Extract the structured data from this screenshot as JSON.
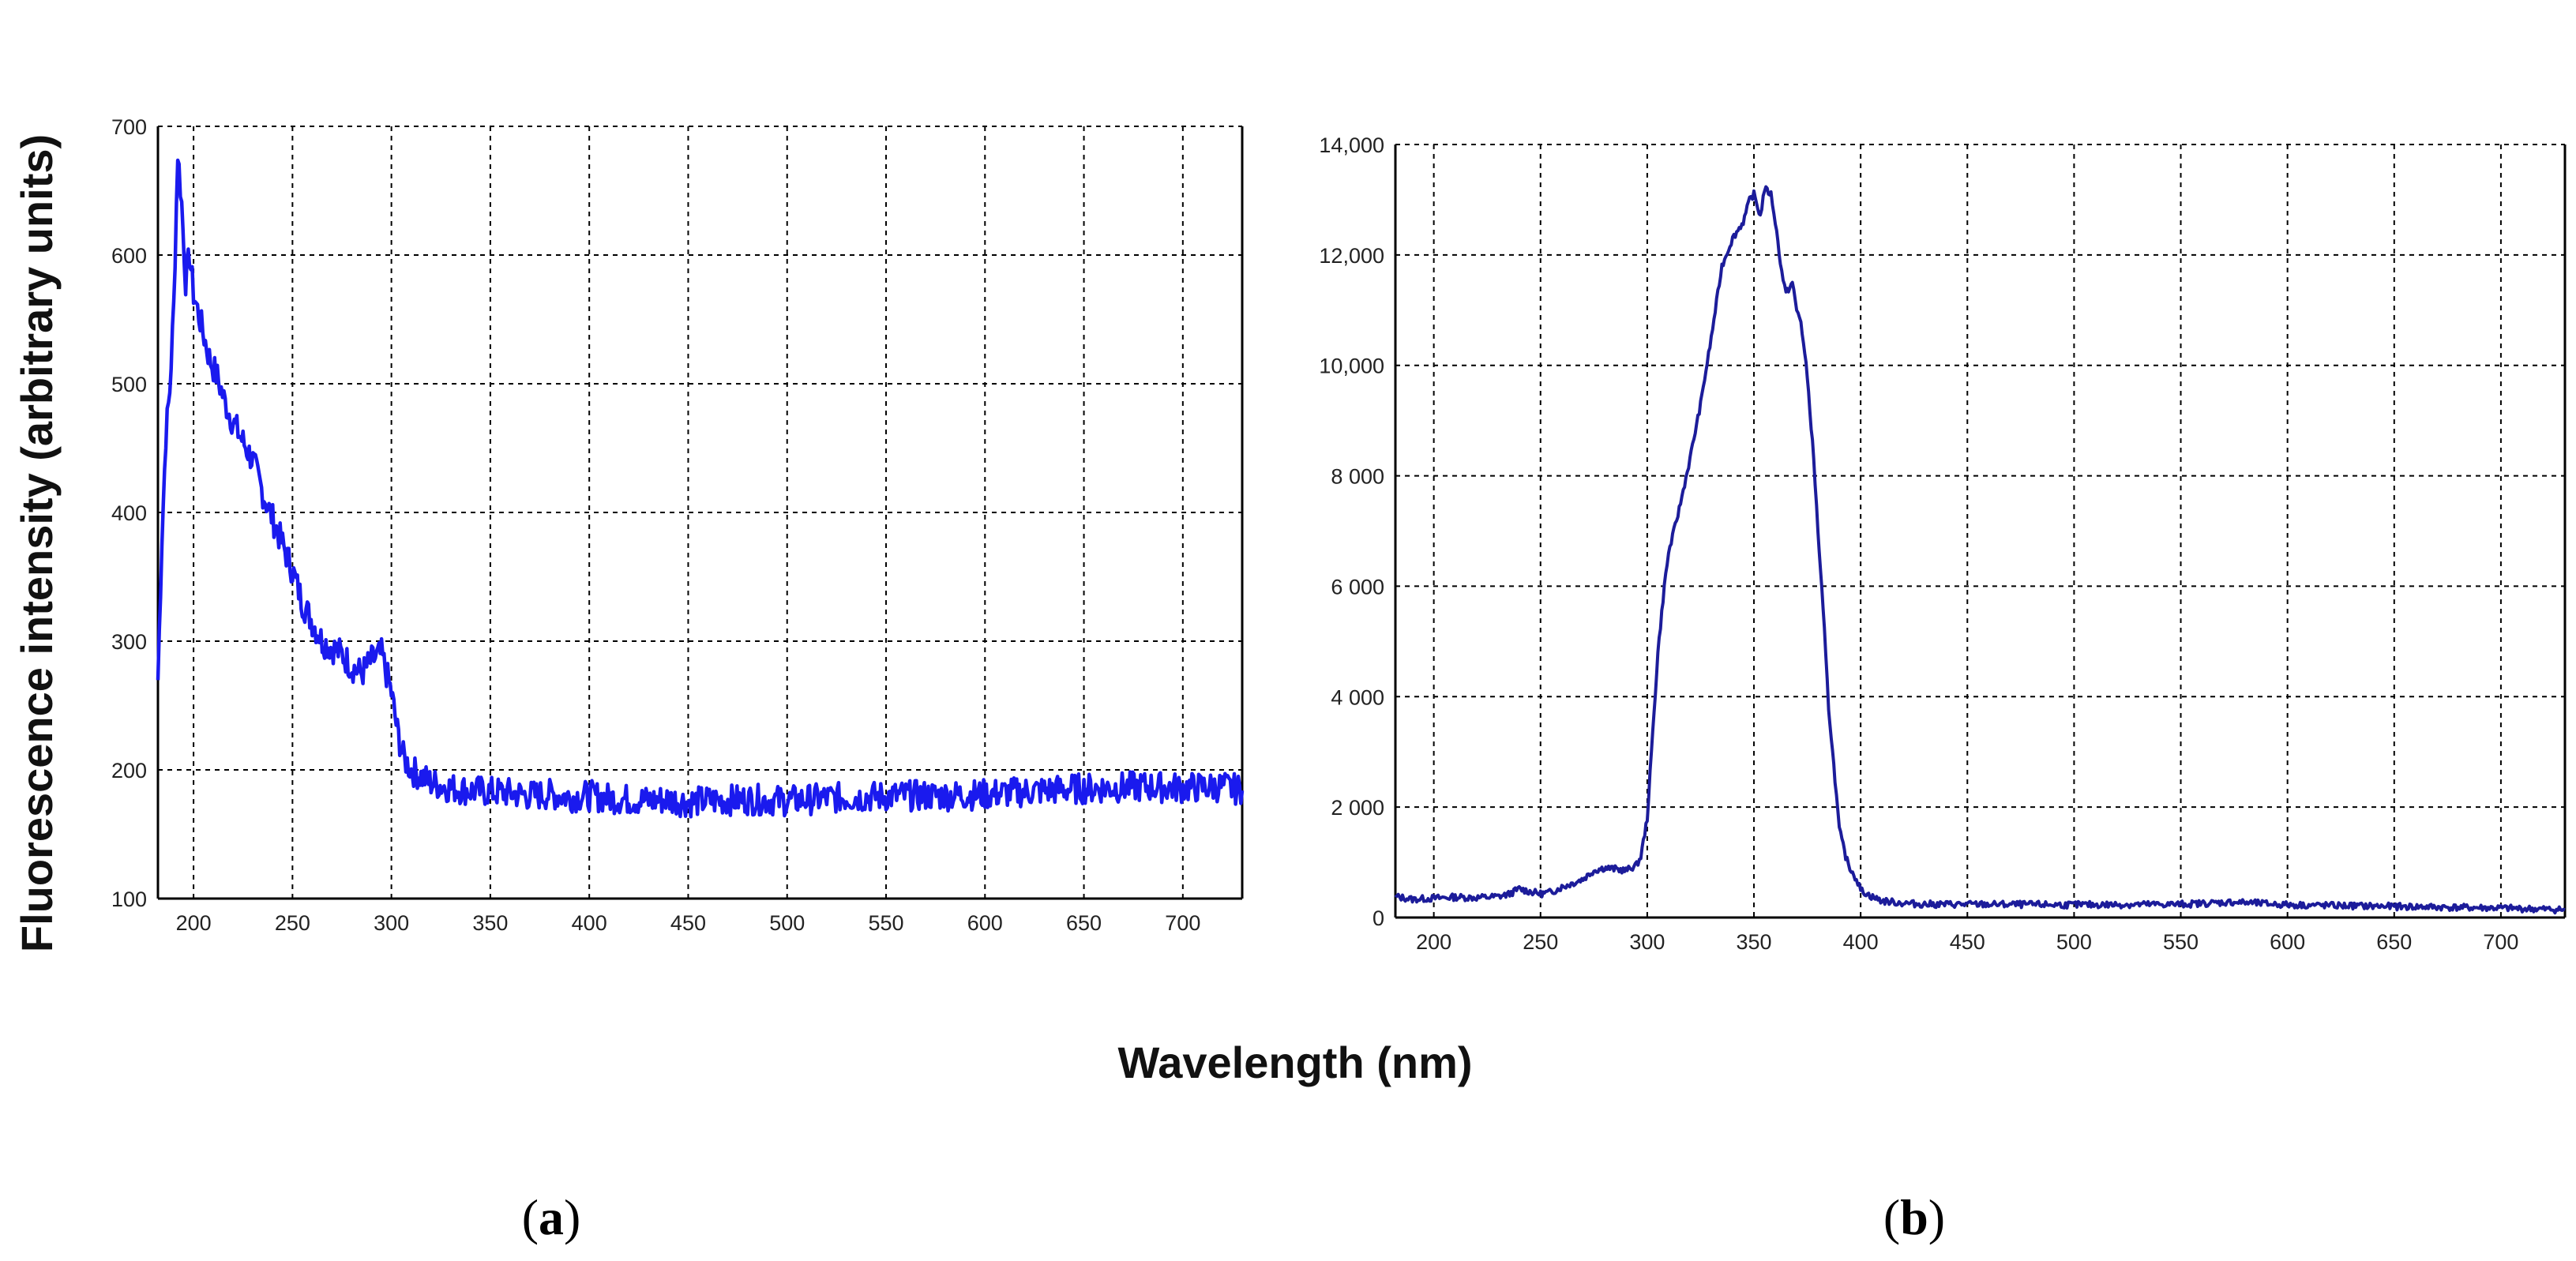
{
  "figure": {
    "ylabel": "Fluorescence intensity (arbitrary units)",
    "xlabel": "Wavelength (nm)",
    "panel_a": {
      "open": "(",
      "letter": "a",
      "close": ")"
    },
    "panel_b": {
      "open": "(",
      "letter": "b",
      "close": ")"
    }
  },
  "colors": {
    "series_a": "#1a1aee",
    "series_b": "#1c1c9a",
    "grid": "#000000"
  },
  "chart_data": [
    {
      "id": "a",
      "type": "line",
      "title": "",
      "xlabel": "Wavelength (nm)",
      "ylabel": "Fluorescence intensity (arbitrary units)",
      "xlim": [
        182,
        730
      ],
      "ylim": [
        100,
        700
      ],
      "grid": true,
      "xticks": [
        200,
        250,
        300,
        350,
        400,
        450,
        500,
        550,
        600,
        650,
        700
      ],
      "xtick_labels": [
        "200",
        "250",
        "300",
        "350",
        "400",
        "450",
        "500",
        "550",
        "600",
        "650",
        "700"
      ],
      "yticks": [
        100,
        200,
        300,
        400,
        500,
        600,
        700
      ],
      "ytick_labels": [
        "100",
        "200",
        "300",
        "400",
        "500",
        "600",
        "700"
      ],
      "series": [
        {
          "name": "Fluorescence",
          "x": [
            182,
            184,
            186,
            188,
            190,
            192,
            194,
            196,
            198,
            200,
            204,
            208,
            212,
            216,
            220,
            225,
            230,
            235,
            240,
            245,
            250,
            255,
            260,
            265,
            270,
            275,
            280,
            285,
            290,
            295,
            300,
            303,
            306,
            310,
            315,
            320,
            330,
            340,
            350,
            360,
            370,
            380,
            390,
            400,
            410,
            420,
            430,
            440,
            450,
            460,
            480,
            500,
            520,
            540,
            560,
            580,
            600,
            620,
            640,
            660,
            680,
            700,
            720,
            730
          ],
          "y": [
            270,
            380,
            460,
            495,
            560,
            680,
            640,
            580,
            600,
            570,
            545,
            520,
            505,
            485,
            470,
            455,
            440,
            415,
            395,
            375,
            355,
            330,
            315,
            300,
            295,
            290,
            280,
            275,
            285,
            290,
            260,
            230,
            210,
            200,
            195,
            190,
            186,
            184,
            183,
            182,
            180,
            181,
            179,
            180,
            178,
            177,
            176,
            177,
            175,
            176,
            177,
            176,
            178,
            179,
            180,
            180,
            181,
            183,
            185,
            186,
            187,
            186,
            187,
            184
          ],
          "noise": 12
        }
      ]
    },
    {
      "id": "b",
      "type": "line",
      "title": "",
      "xlabel": "",
      "ylabel": "",
      "xlim": [
        182,
        730
      ],
      "ylim": [
        0,
        14000
      ],
      "grid": true,
      "xticks": [
        200,
        250,
        300,
        350,
        400,
        450,
        500,
        550,
        600,
        650,
        700
      ],
      "xtick_labels": [
        "200",
        "250",
        "300",
        "350",
        "400",
        "450",
        "500",
        "550",
        "600",
        "650",
        "700"
      ],
      "yticks": [
        0,
        2000,
        4000,
        6000,
        8000,
        10000,
        12000,
        14000
      ],
      "ytick_labels": [
        "0",
        "2 000",
        "4 000",
        "6 000",
        "8 000",
        "10,000",
        "12,000",
        "14,000"
      ],
      "series": [
        {
          "name": "Fluorescence",
          "x": [
            182,
            190,
            200,
            210,
            220,
            230,
            235,
            240,
            245,
            250,
            255,
            260,
            265,
            270,
            275,
            280,
            285,
            290,
            295,
            297,
            300,
            302,
            305,
            308,
            310,
            315,
            320,
            325,
            330,
            335,
            340,
            345,
            348,
            350,
            353,
            355,
            358,
            360,
            363,
            365,
            368,
            370,
            372,
            375,
            378,
            380,
            383,
            385,
            388,
            390,
            393,
            395,
            398,
            400,
            405,
            410,
            420,
            430,
            450,
            500,
            550,
            575,
            600,
            650,
            700,
            730
          ],
          "y": [
            380,
            330,
            350,
            370,
            360,
            380,
            420,
            520,
            470,
            430,
            460,
            550,
            620,
            700,
            850,
            900,
            880,
            850,
            950,
            1100,
            1800,
            3000,
            4800,
            6000,
            6600,
            7400,
            8300,
            9300,
            10500,
            11800,
            12300,
            12600,
            13000,
            13100,
            12700,
            13200,
            13100,
            12600,
            11700,
            11300,
            11500,
            11000,
            10800,
            9800,
            8300,
            7000,
            5200,
            3800,
            2500,
            1600,
            1100,
            900,
            700,
            500,
            380,
            300,
            260,
            240,
            240,
            230,
            240,
            280,
            230,
            200,
            170,
            140
          ],
          "noise": 60
        }
      ]
    }
  ]
}
